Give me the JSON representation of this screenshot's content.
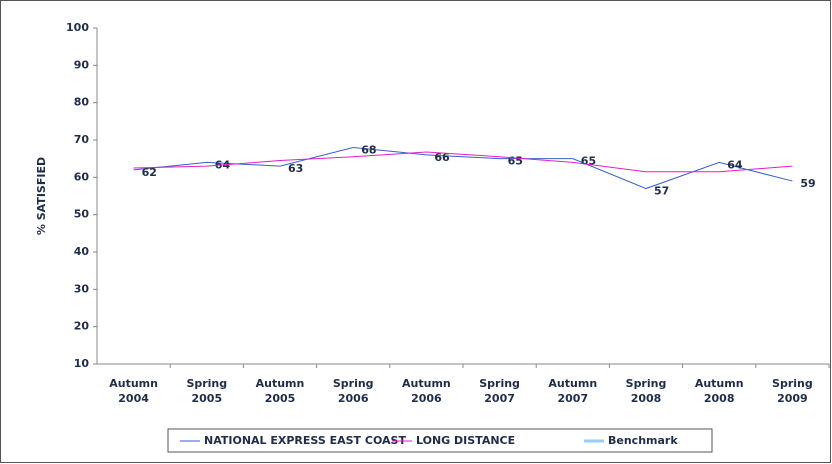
{
  "chart_data": {
    "type": "line",
    "y_label": "% SATISFIED",
    "categories": [
      [
        "Autumn",
        "2004"
      ],
      [
        "Spring",
        "2005"
      ],
      [
        "Autumn",
        "2005"
      ],
      [
        "Spring",
        "2006"
      ],
      [
        "Autumn",
        "2006"
      ],
      [
        "Spring",
        "2007"
      ],
      [
        "Autumn",
        "2007"
      ],
      [
        "Spring",
        "2008"
      ],
      [
        "Autumn",
        "2008"
      ],
      [
        "Spring",
        "2009"
      ]
    ],
    "series": [
      {
        "name": "NATIONAL EXPRESS EAST COAST",
        "color": "#3a5fc8",
        "values": [
          62,
          64,
          63,
          68,
          66,
          65,
          65,
          57,
          64,
          59
        ],
        "data_labels": true
      },
      {
        "name": "LONG DISTANCE",
        "color": "#e020c8",
        "values": [
          62.5,
          63,
          64.5,
          65.5,
          66.8,
          65.5,
          64,
          61.5,
          61.5,
          63
        ]
      },
      {
        "name": "Benchmark",
        "color": "#99ccff",
        "values": [
          null,
          null,
          null,
          null,
          null,
          null,
          null,
          null,
          null,
          null
        ]
      }
    ],
    "ylim": [
      10,
      100
    ],
    "yticks": [
      10,
      20,
      30,
      40,
      50,
      60,
      70,
      80,
      90,
      100
    ]
  }
}
